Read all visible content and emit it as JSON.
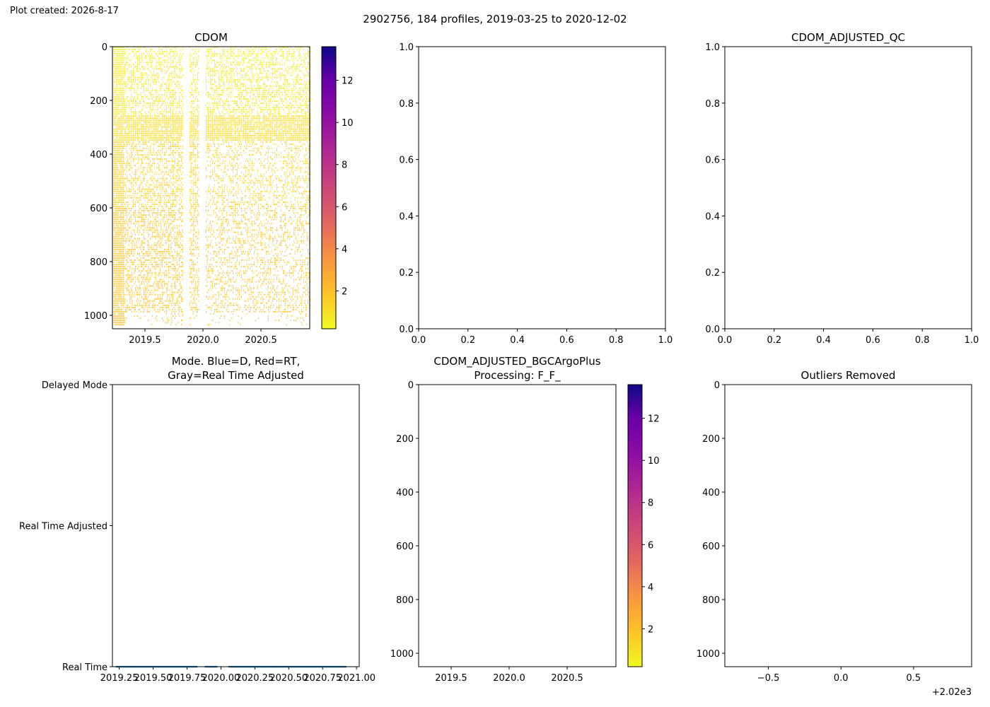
{
  "figure": {
    "created": "Plot created: 2026-8-17",
    "suptitle": "2902756, 184 profiles, 2019-03-25 to 2020-12-02"
  },
  "colors": {
    "spine": "#000000",
    "mode_points": "#1f77b4",
    "cmap": "plasma_r"
  },
  "chart_data": [
    {
      "id": "cdom",
      "type": "heatmap",
      "title": "CDOM",
      "xlim": [
        2019.22,
        2020.92
      ],
      "ylim": [
        1050,
        0
      ],
      "xticks": [
        2019.5,
        2020.0,
        2020.5
      ],
      "xtick_labels": [
        "2019.5",
        "2020.0",
        "2020.5"
      ],
      "yticks": [
        0,
        200,
        400,
        600,
        800,
        1000
      ],
      "ytick_labels": [
        "0",
        "200",
        "400",
        "600",
        "800",
        "1000"
      ],
      "colorbar": {
        "range": [
          0.2,
          13.6
        ],
        "ticks": [
          2,
          4,
          6,
          8,
          10,
          12
        ],
        "tick_labels": [
          "2",
          "4",
          "6",
          "8",
          "10",
          "12"
        ]
      },
      "profiles": 184,
      "time_range": [
        2019.23,
        2020.92
      ],
      "value_bands": [
        {
          "depth": [
            0,
            50
          ],
          "value": 0.5
        },
        {
          "depth": [
            50,
            250
          ],
          "value": 0.8
        },
        {
          "depth": [
            250,
            350
          ],
          "value": 1.2
        },
        {
          "depth": [
            350,
            600
          ],
          "value": 1.5
        },
        {
          "depth": [
            600,
            1000
          ],
          "value": 1.9
        },
        {
          "depth": [
            1000,
            1040
          ],
          "value": 2.2
        }
      ]
    },
    {
      "id": "empty-1",
      "type": "scatter",
      "title": "",
      "xlim": [
        0,
        1
      ],
      "ylim": [
        0,
        1
      ],
      "xticks": [
        0,
        0.2,
        0.4,
        0.6,
        0.8,
        1.0
      ],
      "xtick_labels": [
        "0.0",
        "0.2",
        "0.4",
        "0.6",
        "0.8",
        "1.0"
      ],
      "yticks": [
        0,
        0.2,
        0.4,
        0.6,
        0.8,
        1.0
      ],
      "ytick_labels": [
        "0.0",
        "0.2",
        "0.4",
        "0.6",
        "0.8",
        "1.0"
      ]
    },
    {
      "id": "qc",
      "type": "scatter",
      "title": "CDOM_ADJUSTED_QC",
      "xlim": [
        0,
        1
      ],
      "ylim": [
        0,
        1
      ],
      "xticks": [
        0,
        0.2,
        0.4,
        0.6,
        0.8,
        1.0
      ],
      "xtick_labels": [
        "0.0",
        "0.2",
        "0.4",
        "0.6",
        "0.8",
        "1.0"
      ],
      "yticks": [
        0,
        0.2,
        0.4,
        0.6,
        0.8,
        1.0
      ],
      "ytick_labels": [
        "0.0",
        "0.2",
        "0.4",
        "0.6",
        "0.8",
        "1.0"
      ]
    },
    {
      "id": "mode",
      "type": "scatter",
      "title": "Mode. Blue=D, Red=RT,",
      "title2": "Gray=Real Time Adjusted",
      "xlim": [
        2019.2,
        2021.02
      ],
      "ylim": [
        0,
        2
      ],
      "xticks": [
        2019.25,
        2019.5,
        2019.75,
        2020.0,
        2020.25,
        2020.5,
        2020.75,
        2021.0
      ],
      "xtick_labels": [
        "2019.25",
        "2019.50",
        "2019.75",
        "2020.00",
        "2020.25",
        "2020.50",
        "2020.75",
        "2021.00"
      ],
      "yticks": [
        0,
        1,
        2
      ],
      "ytick_labels": [
        "Real Time",
        "Real Time Adjusted",
        "Delayed Mode"
      ],
      "points": {
        "y": 0,
        "count": 184,
        "x_range": [
          2019.23,
          2020.92
        ],
        "gaps": [
          [
            2019.83,
            2019.88
          ],
          [
            2019.97,
            2020.06
          ]
        ]
      }
    },
    {
      "id": "adjusted",
      "type": "heatmap",
      "title": "CDOM_ADJUSTED_BGCArgoPlus",
      "title2": "Processing: F_F_",
      "xlim": [
        2019.22,
        2020.92
      ],
      "ylim": [
        1050,
        0
      ],
      "xticks": [
        2019.5,
        2020.0,
        2020.5
      ],
      "xtick_labels": [
        "2019.5",
        "2020.0",
        "2020.5"
      ],
      "yticks": [
        0,
        200,
        400,
        600,
        800,
        1000
      ],
      "ytick_labels": [
        "0",
        "200",
        "400",
        "600",
        "800",
        "1000"
      ],
      "colorbar": {
        "range": [
          0.2,
          13.6
        ],
        "ticks": [
          2,
          4,
          6,
          8,
          10,
          12
        ],
        "tick_labels": [
          "2",
          "4",
          "6",
          "8",
          "10",
          "12"
        ]
      }
    },
    {
      "id": "outliers",
      "type": "scatter",
      "title": "Outliers Removed",
      "xlim": [
        -0.8,
        0.9
      ],
      "ylim": [
        1050,
        0
      ],
      "xticks": [
        -0.5,
        0.0,
        0.5
      ],
      "xtick_labels": [
        "−0.5",
        "0.0",
        "0.5"
      ],
      "yticks": [
        0,
        200,
        400,
        600,
        800,
        1000
      ],
      "ytick_labels": [
        "0",
        "200",
        "400",
        "600",
        "800",
        "1000"
      ],
      "offset_text": "+2.02e3"
    }
  ]
}
